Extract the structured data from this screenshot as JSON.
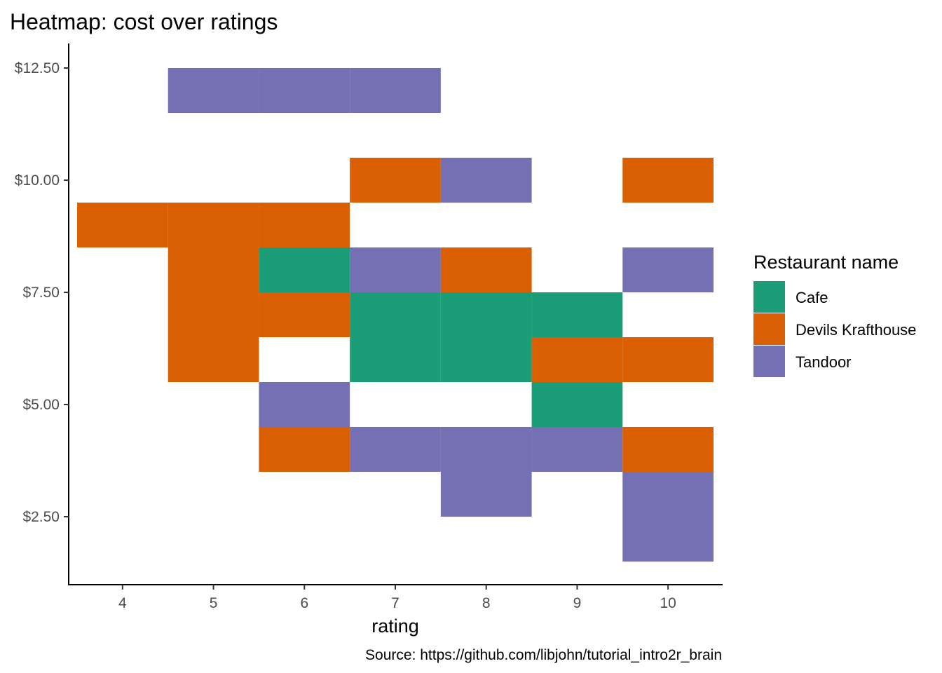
{
  "chart_data": {
    "type": "heatmap",
    "title": "Heatmap: cost over ratings",
    "xlabel": "rating",
    "ylabel": "",
    "caption": "Source: https://github.com/libjohn/tutorial_intro2r_brain",
    "x_ticks": [
      4,
      5,
      6,
      7,
      8,
      9,
      10
    ],
    "y_ticks": [
      {
        "value": 2.5,
        "label": "$2.50"
      },
      {
        "value": 5.0,
        "label": "$5.00"
      },
      {
        "value": 7.5,
        "label": "$7.50"
      },
      {
        "value": 10.0,
        "label": "$10.00"
      },
      {
        "value": 12.5,
        "label": "$12.50"
      }
    ],
    "xlim": [
      3.5,
      10.5
    ],
    "ylim": [
      1.5,
      12.5
    ],
    "cell_height": 1.0,
    "grid": false,
    "legend": {
      "title": "Restaurant name",
      "position": "right",
      "entries": [
        {
          "name": "Cafe",
          "color": "#1b9e77"
        },
        {
          "name": "Devils Krafthouse",
          "color": "#d95f02"
        },
        {
          "name": "Tandoor",
          "color": "#7570b3"
        }
      ]
    },
    "cells": [
      {
        "x": 5,
        "y": 12,
        "group": "Tandoor"
      },
      {
        "x": 6,
        "y": 12,
        "group": "Tandoor"
      },
      {
        "x": 7,
        "y": 12,
        "group": "Tandoor"
      },
      {
        "x": 7,
        "y": 10,
        "group": "Devils Krafthouse"
      },
      {
        "x": 8,
        "y": 10,
        "group": "Tandoor"
      },
      {
        "x": 10,
        "y": 10,
        "group": "Devils Krafthouse"
      },
      {
        "x": 4,
        "y": 9,
        "group": "Devils Krafthouse"
      },
      {
        "x": 5,
        "y": 9,
        "group": "Devils Krafthouse"
      },
      {
        "x": 6,
        "y": 9,
        "group": "Devils Krafthouse"
      },
      {
        "x": 5,
        "y": 8,
        "group": "Devils Krafthouse"
      },
      {
        "x": 6,
        "y": 8,
        "group": "Cafe"
      },
      {
        "x": 7,
        "y": 8,
        "group": "Tandoor"
      },
      {
        "x": 8,
        "y": 8,
        "group": "Devils Krafthouse"
      },
      {
        "x": 10,
        "y": 8,
        "group": "Tandoor"
      },
      {
        "x": 5,
        "y": 7,
        "group": "Devils Krafthouse"
      },
      {
        "x": 6,
        "y": 7,
        "group": "Devils Krafthouse"
      },
      {
        "x": 7,
        "y": 7,
        "group": "Cafe"
      },
      {
        "x": 8,
        "y": 7,
        "group": "Cafe"
      },
      {
        "x": 9,
        "y": 7,
        "group": "Cafe"
      },
      {
        "x": 5,
        "y": 6,
        "group": "Devils Krafthouse"
      },
      {
        "x": 7,
        "y": 6,
        "group": "Cafe"
      },
      {
        "x": 8,
        "y": 6,
        "group": "Cafe"
      },
      {
        "x": 9,
        "y": 6,
        "group": "Devils Krafthouse"
      },
      {
        "x": 10,
        "y": 6,
        "group": "Devils Krafthouse"
      },
      {
        "x": 6,
        "y": 5,
        "group": "Tandoor"
      },
      {
        "x": 9,
        "y": 5,
        "group": "Cafe"
      },
      {
        "x": 6,
        "y": 4,
        "group": "Devils Krafthouse"
      },
      {
        "x": 7,
        "y": 4,
        "group": "Tandoor"
      },
      {
        "x": 8,
        "y": 4,
        "group": "Tandoor"
      },
      {
        "x": 9,
        "y": 4,
        "group": "Tandoor"
      },
      {
        "x": 10,
        "y": 4,
        "group": "Devils Krafthouse"
      },
      {
        "x": 8,
        "y": 3,
        "group": "Tandoor"
      },
      {
        "x": 10,
        "y": 3,
        "group": "Tandoor"
      },
      {
        "x": 10,
        "y": 2,
        "group": "Tandoor"
      }
    ]
  }
}
